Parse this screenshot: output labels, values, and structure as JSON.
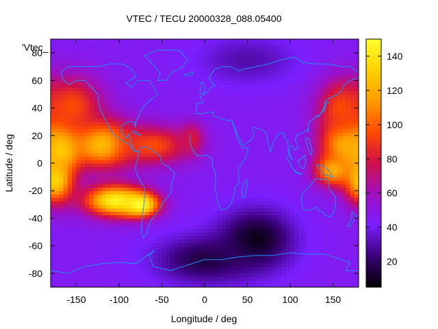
{
  "chart_data": {
    "type": "heatmap",
    "title": "VTEC / TECU 20000328_088.05400",
    "xlabel": "Longitude / deg",
    "ylabel": "Latitude / deg",
    "series_key_label": "'Vtec_",
    "xlim": [
      -180,
      180
    ],
    "ylim": [
      -90,
      90
    ],
    "x_ticks": [
      -150,
      -100,
      -50,
      0,
      50,
      100,
      150
    ],
    "y_ticks": [
      -80,
      -60,
      -40,
      -20,
      0,
      20,
      40,
      60,
      80
    ],
    "colorbar": {
      "range": [
        5,
        150
      ],
      "ticks": [
        20,
        40,
        60,
        80,
        100,
        120,
        140
      ],
      "palette": [
        "#000000",
        "#3a0078",
        "#7a1fff",
        "#a010c0",
        "#d0104a",
        "#ff4a00",
        "#ff9c00",
        "#ffd200",
        "#ffff30"
      ]
    },
    "grid": "off",
    "map_overlay": "coastlines",
    "coastline_color": "#1e90ff",
    "field_features": [
      {
        "lon": -170,
        "lat": 12,
        "vtec": 140,
        "spread_lon": 18,
        "spread_lat": 12
      },
      {
        "lon": -120,
        "lat": 14,
        "vtec": 130,
        "spread_lon": 25,
        "spread_lat": 12
      },
      {
        "lon": -60,
        "lat": 13,
        "vtec": 95,
        "spread_lon": 30,
        "spread_lat": 10
      },
      {
        "lon": -15,
        "lat": 18,
        "vtec": 80,
        "spread_lon": 10,
        "spread_lat": 8
      },
      {
        "lon": -175,
        "lat": -12,
        "vtec": 135,
        "spread_lon": 15,
        "spread_lat": 12
      },
      {
        "lon": -105,
        "lat": -27,
        "vtec": 145,
        "spread_lon": 25,
        "spread_lat": 8
      },
      {
        "lon": -75,
        "lat": -30,
        "vtec": 150,
        "spread_lon": 15,
        "spread_lat": 6
      },
      {
        "lon": -155,
        "lat": 42,
        "vtec": 95,
        "spread_lon": 25,
        "spread_lat": 15
      },
      {
        "lon": 165,
        "lat": 15,
        "vtec": 125,
        "spread_lon": 20,
        "spread_lat": 12
      },
      {
        "lon": 150,
        "lat": -5,
        "vtec": 120,
        "spread_lon": 15,
        "spread_lat": 8
      },
      {
        "lon": 160,
        "lat": 40,
        "vtec": 95,
        "spread_lon": 20,
        "spread_lat": 15
      },
      {
        "lon": 60,
        "lat": -55,
        "vtec": 8,
        "spread_lon": 30,
        "spread_lat": 15
      },
      {
        "lon": 0,
        "lat": -70,
        "vtec": 15,
        "spread_lon": 40,
        "spread_lat": 12
      },
      {
        "lon": 50,
        "lat": 75,
        "vtec": 30,
        "spread_lon": 40,
        "spread_lat": 12
      }
    ],
    "background_vtec": 45
  }
}
